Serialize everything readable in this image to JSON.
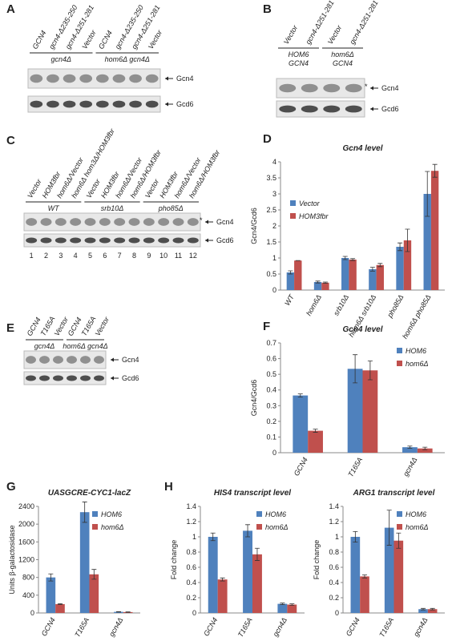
{
  "blots": [
    {
      "panel": "A",
      "lanes": [
        "GCN4",
        "gcn4-Δ235-250",
        "gcn4-Δ251-281",
        "Vector",
        "GCN4",
        "gcn4-Δ235-250",
        "gcn4-Δ251-281",
        "Vector"
      ],
      "groups": [
        [
          "gcn4Δ"
        ],
        [
          "hom6Δ gcn4Δ"
        ]
      ],
      "bands": [
        "Gcn4",
        "Gcd6"
      ]
    },
    {
      "panel": "B",
      "lanes": [
        "Vector",
        "gcn4-Δ251-281",
        "Vector",
        "gcn4-Δ251-281"
      ],
      "groups": [
        [
          "HOM6",
          "GCN4"
        ],
        [
          "hom6Δ",
          "GCN4"
        ]
      ],
      "bands": [
        "Gcn4",
        "Gcd6"
      ],
      "marker": "*"
    },
    {
      "panel": "C",
      "lanes": [
        "Vector",
        "HOM3fbr",
        "hom6Δ/Vector",
        "hom6Δ hom3Δ/HOM3fbr",
        "Vector",
        "HOM3fbr",
        "hom6Δ/Vector",
        "hom6Δ/HOM3fbr",
        "Vector",
        "HOM3fbr",
        "hom6Δ/Vector",
        "hom6Δ/HOM3fbr"
      ],
      "groups": [
        [
          "WT"
        ],
        [
          "srb10Δ"
        ],
        [
          "pho85Δ"
        ]
      ],
      "bands": [
        "Gcn4",
        "Gcd6"
      ],
      "marker": "*",
      "lane_numbers": [
        1,
        2,
        3,
        4,
        5,
        6,
        7,
        8,
        9,
        10,
        11,
        12
      ]
    },
    {
      "panel": "E",
      "lanes": [
        "GCN4",
        "T165A",
        "Vector",
        "GCN4",
        "T165A",
        "Vector"
      ],
      "groups": [
        [
          "gcn4Δ"
        ],
        [
          "hom6Δ gcn4Δ"
        ]
      ],
      "bands": [
        "Gcn4",
        "Gcd6"
      ]
    }
  ],
  "chart_data": [
    {
      "type": "bar",
      "panel": "D",
      "title": "Gcn4 level",
      "y_label": "Gcn4/Gcd6",
      "categories": [
        "WT",
        "hom6Δ",
        "srb10Δ",
        "hom6Δ srb10Δ",
        "pho85Δ",
        "hom6Δ pho85Δ"
      ],
      "series": [
        {
          "name": "Vector",
          "color": "#4f81bd",
          "values": [
            0.55,
            0.25,
            1.0,
            0.65,
            1.35,
            3.0
          ],
          "errors": [
            0.05,
            0.03,
            0.05,
            0.06,
            0.12,
            0.7
          ]
        },
        {
          "name": "HOM3fbr",
          "color": "#c0504d",
          "values": [
            0.92,
            0.23,
            0.95,
            0.78,
            1.55,
            3.72
          ],
          "errors": [
            0,
            0.02,
            0.03,
            0.05,
            0.35,
            0.2
          ]
        }
      ],
      "ylim": [
        0,
        4
      ],
      "yticks": [
        0,
        0.5,
        1,
        1.5,
        2,
        2.5,
        3,
        3.5,
        4
      ],
      "legend": "center left"
    },
    {
      "type": "bar",
      "panel": "F",
      "title": "Gcn4 level",
      "y_label": "Gcn4/Gcd6",
      "categories": [
        "GCN4",
        "T165A",
        "gcn4Δ"
      ],
      "series": [
        {
          "name": "HOM6",
          "color": "#4f81bd",
          "values": [
            0.365,
            0.535,
            0.035
          ],
          "errors": [
            0.01,
            0.09,
            0.007
          ]
        },
        {
          "name": "hom6Δ",
          "color": "#c0504d",
          "values": [
            0.14,
            0.525,
            0.027
          ],
          "errors": [
            0.01,
            0.06,
            0.008
          ]
        }
      ],
      "ylim": [
        0,
        0.7
      ],
      "yticks": [
        0,
        0.1,
        0.2,
        0.3,
        0.4,
        0.5,
        0.6,
        0.7
      ],
      "legend": "upper right"
    },
    {
      "type": "bar",
      "panel": "G",
      "title": "UASGCRE-CYC1-lacZ",
      "y_label": "Units β-galactosidase",
      "categories": [
        "GCN4",
        "T165A",
        "gcn4Δ"
      ],
      "series": [
        {
          "name": "HOM6",
          "color": "#4f81bd",
          "values": [
            800,
            2270,
            25
          ],
          "errors": [
            80,
            230,
            5
          ]
        },
        {
          "name": "hom6Δ",
          "color": "#c0504d",
          "values": [
            200,
            870,
            20
          ],
          "errors": [
            10,
            110,
            5
          ]
        }
      ],
      "ylim": [
        0,
        2400
      ],
      "yticks": [
        0,
        400,
        800,
        1200,
        1600,
        2000,
        2400
      ],
      "legend": "upper right"
    },
    {
      "type": "bar",
      "panel": "H",
      "title": "HIS4 transcript level",
      "y_label": "Fold change",
      "categories": [
        "GCN4",
        "T165A",
        "gcn4Δ"
      ],
      "series": [
        {
          "name": "HOM6",
          "color": "#4f81bd",
          "values": [
            1.0,
            1.08,
            0.12
          ],
          "errors": [
            0.05,
            0.08,
            0.01
          ]
        },
        {
          "name": "hom6Δ",
          "color": "#c0504d",
          "values": [
            0.44,
            0.77,
            0.11
          ],
          "errors": [
            0.02,
            0.08,
            0.01
          ]
        }
      ],
      "ylim": [
        0,
        1.4
      ],
      "yticks": [
        0,
        0.2,
        0.4,
        0.6,
        0.8,
        1,
        1.2,
        1.4
      ],
      "legend": "upper right"
    },
    {
      "type": "bar",
      "title": "ARG1 transcript level",
      "y_label": "Fold change",
      "categories": [
        "GCN4",
        "T165A",
        "gcn4Δ"
      ],
      "series": [
        {
          "name": "HOM6",
          "color": "#4f81bd",
          "values": [
            1.0,
            1.12,
            0.05
          ],
          "errors": [
            0.07,
            0.23,
            0.01
          ]
        },
        {
          "name": "hom6Δ",
          "color": "#c0504d",
          "values": [
            0.48,
            0.95,
            0.05
          ],
          "errors": [
            0.02,
            0.1,
            0.01
          ]
        }
      ],
      "ylim": [
        0,
        1.4
      ],
      "yticks": [
        0,
        0.2,
        0.4,
        0.6,
        0.8,
        1,
        1.2,
        1.4
      ],
      "legend": "upper right"
    }
  ]
}
